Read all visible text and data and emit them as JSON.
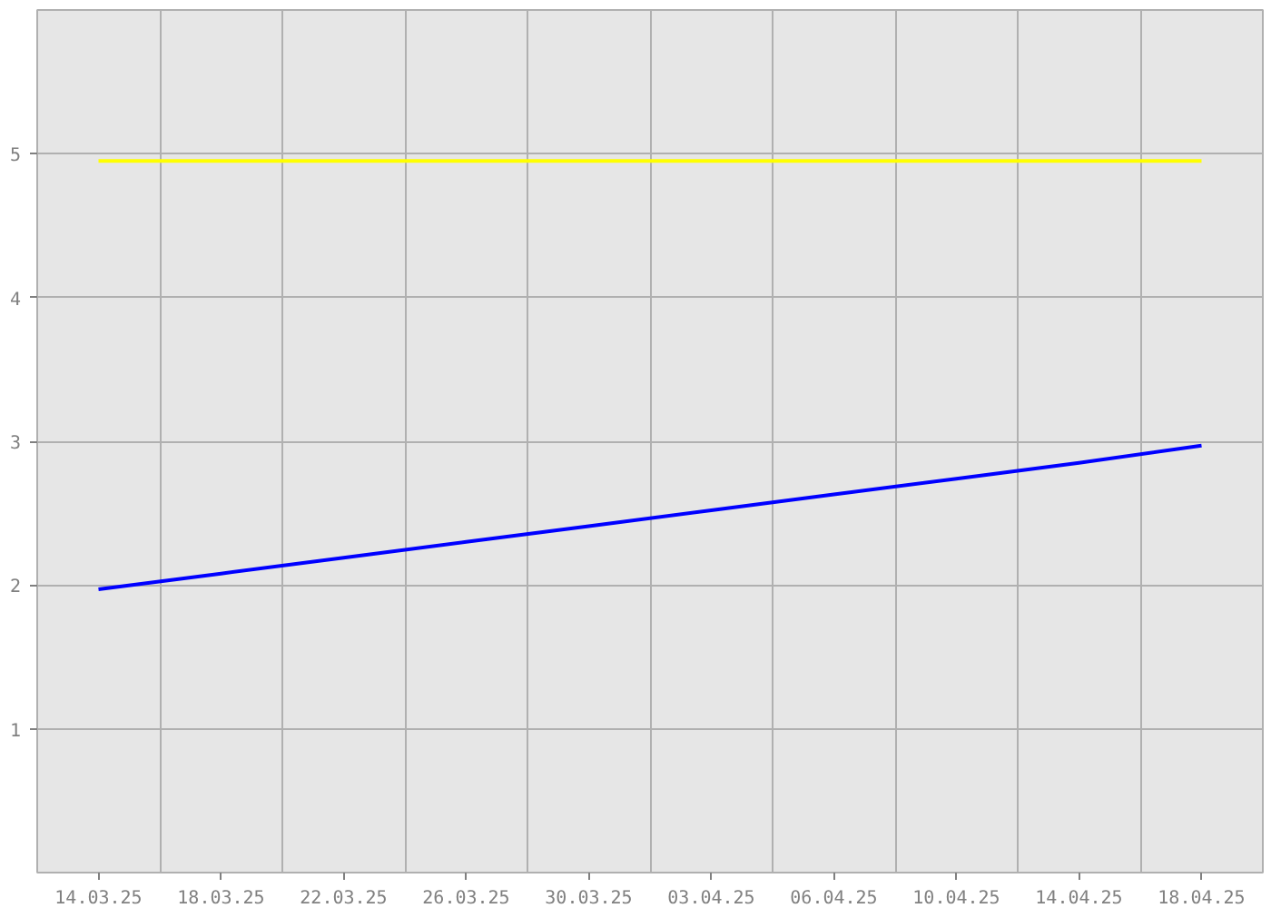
{
  "chart_data": {
    "type": "line",
    "categories": [
      "14.03.25",
      "18.03.25",
      "22.03.25",
      "26.03.25",
      "30.03.25",
      "03.04.25",
      "06.04.25",
      "10.04.25",
      "14.04.25",
      "18.04.25"
    ],
    "series": [
      {
        "color": "#ffff00",
        "values": [
          4.95,
          4.95,
          4.95,
          4.95,
          4.95,
          4.95,
          4.95,
          4.95,
          4.95,
          4.95
        ]
      },
      {
        "color": "#0000ff",
        "values": [
          1.97,
          2.08,
          2.19,
          2.3,
          2.41,
          2.52,
          2.63,
          2.74,
          2.85,
          2.97
        ]
      }
    ],
    "ylim": [
      0,
      6
    ],
    "yticks": [
      1,
      2,
      3,
      4,
      5
    ],
    "grid": true,
    "marker": "none",
    "line_style": "solid"
  }
}
